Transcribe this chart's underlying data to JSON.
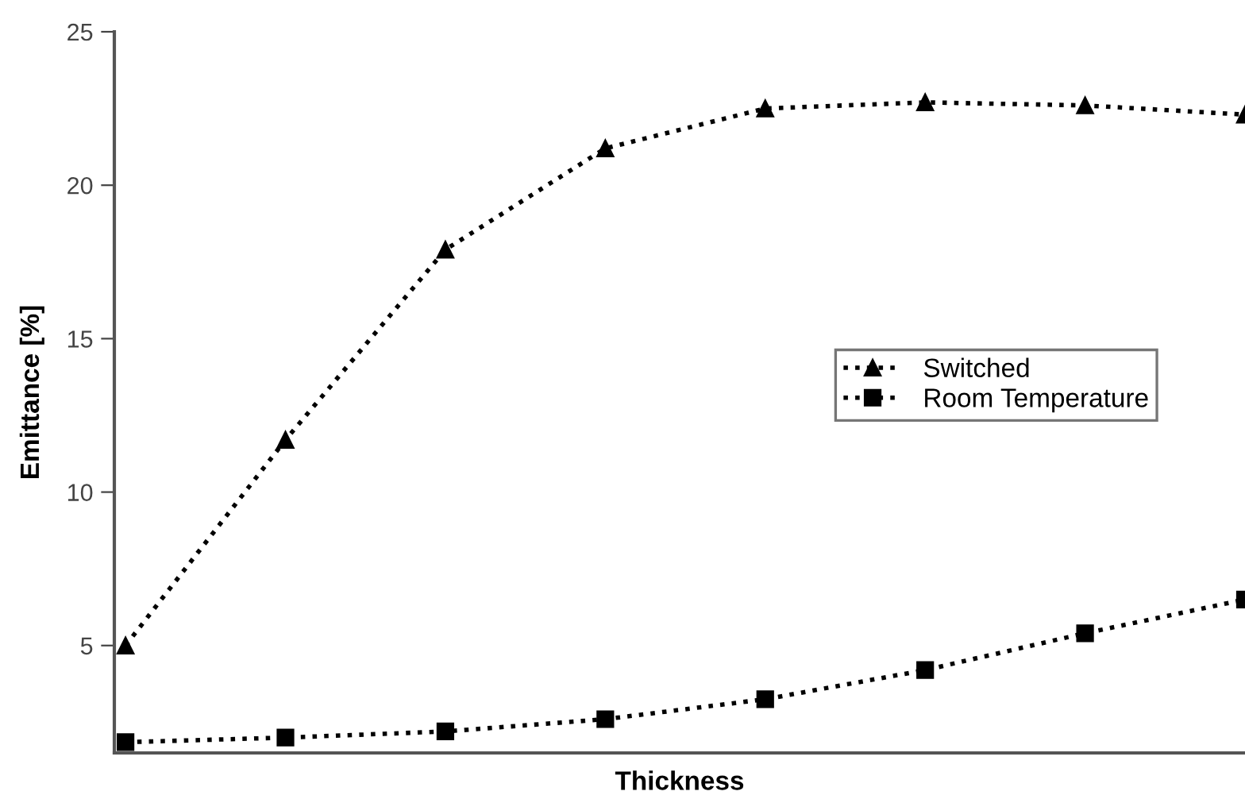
{
  "chart_data": {
    "type": "line",
    "xlabel": "Thickness",
    "ylabel": "Emittance [%]",
    "categories": [
      null,
      null,
      null,
      null,
      null,
      null,
      null,
      null
    ],
    "series": [
      {
        "name": "Switched",
        "color": "#000000",
        "marker": "triangle",
        "values": [
          5.0,
          11.7,
          17.9,
          21.2,
          22.5,
          22.7,
          22.6,
          22.3
        ]
      },
      {
        "name": "Room Temperature",
        "color": "#000000",
        "marker": "square",
        "values": [
          1.85,
          2.0,
          2.2,
          2.6,
          3.25,
          4.2,
          5.4,
          6.5
        ]
      }
    ],
    "ylim": [
      1.5,
      25
    ],
    "yticks": [
      5,
      10,
      15,
      20,
      25
    ],
    "grid": false,
    "legend": "center",
    "line_style": "dotted",
    "tick_labels": "y"
  }
}
